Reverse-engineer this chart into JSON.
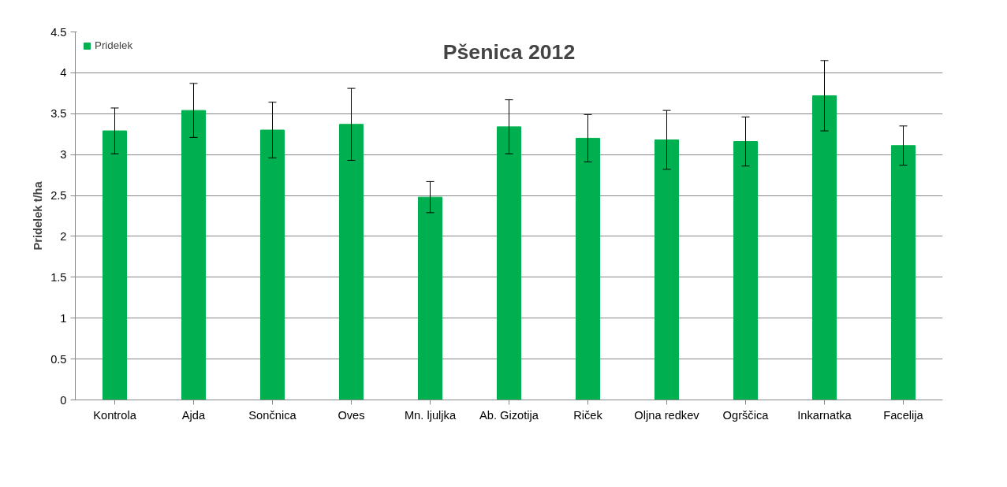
{
  "chart_data": {
    "type": "bar",
    "title": "Pšenica 2012",
    "ylabel": "Pridelek t/ha",
    "categories": [
      "Kontrola",
      "Ajda",
      "Sončnica",
      "Oves",
      "Mn. ljuljka",
      "Ab. Gizotija",
      "Riček",
      "Oljna redkev",
      "Ogrščica",
      "Inkarnatka",
      "Facelija"
    ],
    "series": [
      {
        "name": "Pridelek",
        "color": "#00b050",
        "values": [
          3.29,
          3.54,
          3.3,
          3.37,
          2.48,
          3.34,
          3.2,
          3.18,
          3.16,
          3.72,
          3.11
        ],
        "errors": [
          0.28,
          0.33,
          0.34,
          0.44,
          0.19,
          0.33,
          0.29,
          0.36,
          0.3,
          0.43,
          0.24
        ]
      }
    ],
    "ylim": [
      0,
      4.5
    ],
    "yticks": [
      0,
      0.5,
      1,
      1.5,
      2,
      2.5,
      3,
      3.5,
      4,
      4.5
    ],
    "grid": "y",
    "legend": "top left"
  }
}
